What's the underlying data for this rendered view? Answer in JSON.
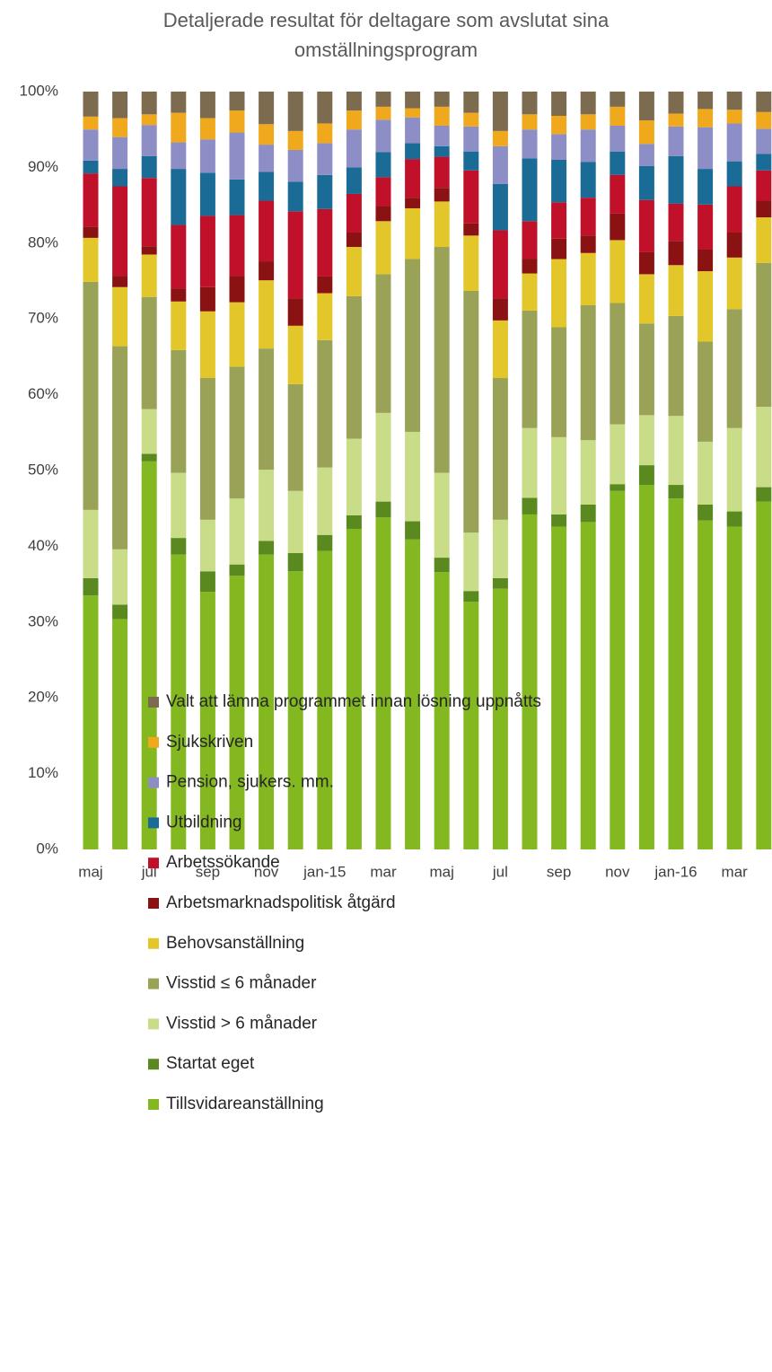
{
  "chart_data": {
    "type": "stacked_bar",
    "title": "Detaljerade resultat för deltagare som avslutat sina omställningsprogram",
    "categories": [
      "maj",
      null,
      "jul",
      null,
      "sep",
      null,
      "nov",
      null,
      "jan-15",
      null,
      "mar",
      null,
      "maj",
      null,
      "jul",
      null,
      "sep",
      null,
      "nov",
      null,
      "jan-16",
      null,
      "mar",
      null
    ],
    "ylim": [
      0,
      100
    ],
    "yticks": [
      {
        "value": 0,
        "label": "0%"
      },
      {
        "value": 10,
        "label": "10%"
      },
      {
        "value": 20,
        "label": "20%"
      },
      {
        "value": 30,
        "label": "30%"
      },
      {
        "value": 40,
        "label": "40%"
      },
      {
        "value": 50,
        "label": "50%"
      },
      {
        "value": 60,
        "label": "60%"
      },
      {
        "value": 70,
        "label": "70%"
      },
      {
        "value": 80,
        "label": "80%"
      },
      {
        "value": 90,
        "label": "90%"
      },
      {
        "value": 100,
        "label": "100%"
      }
    ],
    "grid": false,
    "legend": "bottom",
    "series": [
      {
        "name": "Tillsvidareanställning",
        "color": "#84b820",
        "values": [
          33.5,
          30.4,
          51.2,
          38.9,
          34.0,
          36.1,
          38.9,
          36.7,
          39.4,
          42.3,
          43.8,
          40.9,
          36.6,
          32.7,
          34.4,
          44.2,
          42.6,
          43.2,
          47.3,
          48.1,
          46.3,
          43.4,
          42.6,
          45.9
        ]
      },
      {
        "name": "Startat eget",
        "color": "#5a8a1f",
        "values": [
          2.3,
          1.9,
          1.0,
          2.2,
          2.7,
          1.5,
          1.8,
          2.4,
          2.1,
          1.8,
          2.1,
          2.4,
          1.9,
          1.4,
          1.4,
          2.2,
          1.6,
          2.3,
          0.9,
          2.6,
          1.8,
          2.1,
          2.0,
          1.9
        ]
      },
      {
        "name": "Visstid > 6 månader",
        "color": "#c9dd88",
        "values": [
          9.0,
          7.3,
          5.9,
          8.6,
          6.8,
          8.7,
          9.4,
          8.2,
          8.9,
          10.1,
          11.7,
          11.8,
          11.2,
          7.7,
          7.7,
          9.2,
          10.2,
          8.5,
          7.9,
          6.6,
          9.1,
          8.3,
          11.0,
          10.6
        ]
      },
      {
        "name": "Visstid ≤ 6 månader",
        "color": "#9aa257",
        "values": [
          30.1,
          26.8,
          14.8,
          16.2,
          18.7,
          17.4,
          16.0,
          14.1,
          16.8,
          18.8,
          18.3,
          22.8,
          29.8,
          31.9,
          18.7,
          15.5,
          14.5,
          17.8,
          16.0,
          12.1,
          13.2,
          13.2,
          15.7,
          19.0
        ]
      },
      {
        "name": "Behovsanställning",
        "color": "#e3c62a",
        "values": [
          5.8,
          7.8,
          5.6,
          6.4,
          8.8,
          8.5,
          9.0,
          7.7,
          6.2,
          6.5,
          7.0,
          6.7,
          6.0,
          7.3,
          7.6,
          4.9,
          9.0,
          6.9,
          8.3,
          6.5,
          6.7,
          9.3,
          6.8,
          6.0
        ]
      },
      {
        "name": "Arbetsmarknadspolitisk åtgärd",
        "color": "#8b1212",
        "values": [
          1.5,
          1.5,
          1.1,
          1.7,
          3.2,
          3.5,
          2.5,
          3.6,
          2.2,
          1.9,
          2.0,
          1.4,
          1.8,
          1.6,
          2.9,
          1.9,
          2.7,
          2.3,
          3.5,
          2.9,
          3.2,
          2.9,
          3.3,
          2.2
        ]
      },
      {
        "name": "Arbetssökande",
        "color": "#c0102a",
        "values": [
          7.0,
          11.8,
          9.0,
          8.4,
          9.4,
          8.0,
          8.0,
          11.5,
          8.9,
          5.1,
          3.8,
          5.1,
          4.1,
          7.0,
          9.0,
          5.0,
          4.8,
          5.0,
          5.1,
          6.9,
          4.9,
          5.9,
          6.1,
          4.0
        ]
      },
      {
        "name": "Utbildning",
        "color": "#1a6b96",
        "values": [
          1.7,
          2.3,
          2.9,
          7.4,
          5.7,
          4.7,
          3.8,
          3.9,
          4.5,
          3.5,
          3.3,
          2.1,
          1.4,
          2.5,
          6.1,
          8.3,
          5.6,
          4.7,
          3.1,
          4.5,
          6.3,
          4.7,
          3.3,
          2.2
        ]
      },
      {
        "name": "Pension, sjukers. mm.",
        "color": "#8e8ec6",
        "values": [
          4.1,
          4.2,
          4.1,
          3.5,
          4.4,
          6.2,
          3.6,
          4.2,
          4.2,
          5.0,
          4.3,
          3.4,
          2.7,
          3.3,
          5.0,
          3.8,
          3.4,
          4.3,
          3.4,
          2.9,
          3.9,
          5.5,
          5.0,
          3.3
        ]
      },
      {
        "name": "Sjukskriven",
        "color": "#f0a91c",
        "values": [
          1.7,
          2.5,
          1.4,
          3.9,
          2.8,
          2.9,
          2.7,
          2.5,
          2.6,
          2.5,
          1.7,
          1.2,
          2.5,
          1.8,
          2.0,
          2.0,
          2.4,
          2.0,
          2.5,
          3.1,
          1.7,
          2.4,
          1.8,
          2.2
        ]
      },
      {
        "name": "Valt att lämna programmet innan lösning uppnåtts",
        "color": "#7d6b50",
        "values": [
          3.3,
          3.5,
          3.0,
          2.8,
          3.5,
          2.5,
          4.3,
          5.2,
          4.2,
          2.5,
          2.0,
          2.2,
          2.0,
          2.8,
          5.2,
          3.0,
          3.2,
          3.0,
          2.0,
          3.8,
          2.9,
          2.3,
          2.4,
          2.7
        ]
      }
    ]
  }
}
